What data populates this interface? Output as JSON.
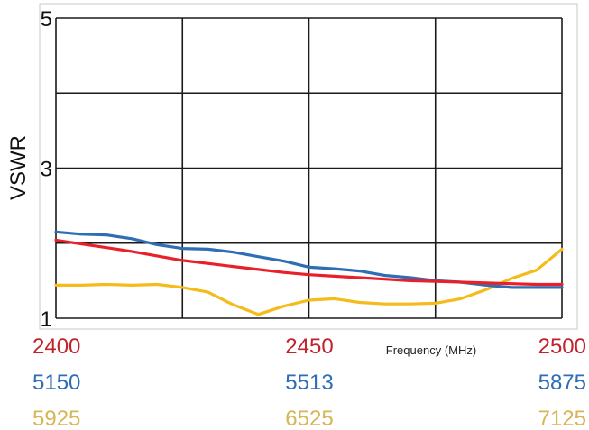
{
  "chart_data": {
    "type": "line",
    "title": "",
    "ylabel": "VSWR",
    "xlabel": "Frequency (MHz)",
    "ylim": [
      1,
      5
    ],
    "y_ticks": [
      "1",
      "3",
      "5"
    ],
    "grid": true,
    "x_axes": [
      {
        "color": "#c0232b",
        "ticks": [
          "2400",
          "2450",
          "2500"
        ],
        "range": [
          2400,
          2500
        ]
      },
      {
        "color": "#2f6eb5",
        "ticks": [
          "5150",
          "5513",
          "5875"
        ],
        "range": [
          5150,
          5875
        ]
      },
      {
        "color": "#d6b656",
        "ticks": [
          "5925",
          "6525",
          "7125"
        ],
        "range": [
          5925,
          7125
        ]
      }
    ],
    "series": [
      {
        "axis": 0,
        "color": "#e8202a",
        "x": [
          2400,
          2405,
          2410,
          2415,
          2420,
          2425,
          2430,
          2435,
          2440,
          2445,
          2450,
          2455,
          2460,
          2465,
          2470,
          2475,
          2480,
          2485,
          2490,
          2495,
          2500
        ],
        "y": [
          2.04,
          1.99,
          1.94,
          1.89,
          1.83,
          1.77,
          1.73,
          1.69,
          1.65,
          1.61,
          1.58,
          1.56,
          1.54,
          1.52,
          1.5,
          1.49,
          1.48,
          1.47,
          1.46,
          1.45,
          1.45
        ]
      },
      {
        "axis": 1,
        "color": "#2f6eb5",
        "x": [
          5150,
          5186,
          5222,
          5259,
          5295,
          5331,
          5368,
          5404,
          5440,
          5477,
          5513,
          5549,
          5585,
          5621,
          5658,
          5694,
          5730,
          5767,
          5803,
          5839,
          5875
        ],
        "y": [
          2.15,
          2.12,
          2.11,
          2.06,
          1.98,
          1.93,
          1.92,
          1.88,
          1.82,
          1.76,
          1.68,
          1.66,
          1.63,
          1.57,
          1.54,
          1.5,
          1.48,
          1.44,
          1.41,
          1.41,
          1.41
        ]
      },
      {
        "axis": 2,
        "color": "#f5bb1a",
        "x": [
          5925,
          5985,
          6045,
          6105,
          6165,
          6225,
          6285,
          6345,
          6405,
          6465,
          6525,
          6585,
          6645,
          6705,
          6765,
          6825,
          6885,
          6945,
          7005,
          7065,
          7125
        ],
        "y": [
          1.44,
          1.44,
          1.45,
          1.44,
          1.45,
          1.41,
          1.35,
          1.18,
          1.05,
          1.16,
          1.24,
          1.26,
          1.21,
          1.19,
          1.19,
          1.2,
          1.26,
          1.38,
          1.53,
          1.64,
          1.92
        ]
      }
    ]
  }
}
